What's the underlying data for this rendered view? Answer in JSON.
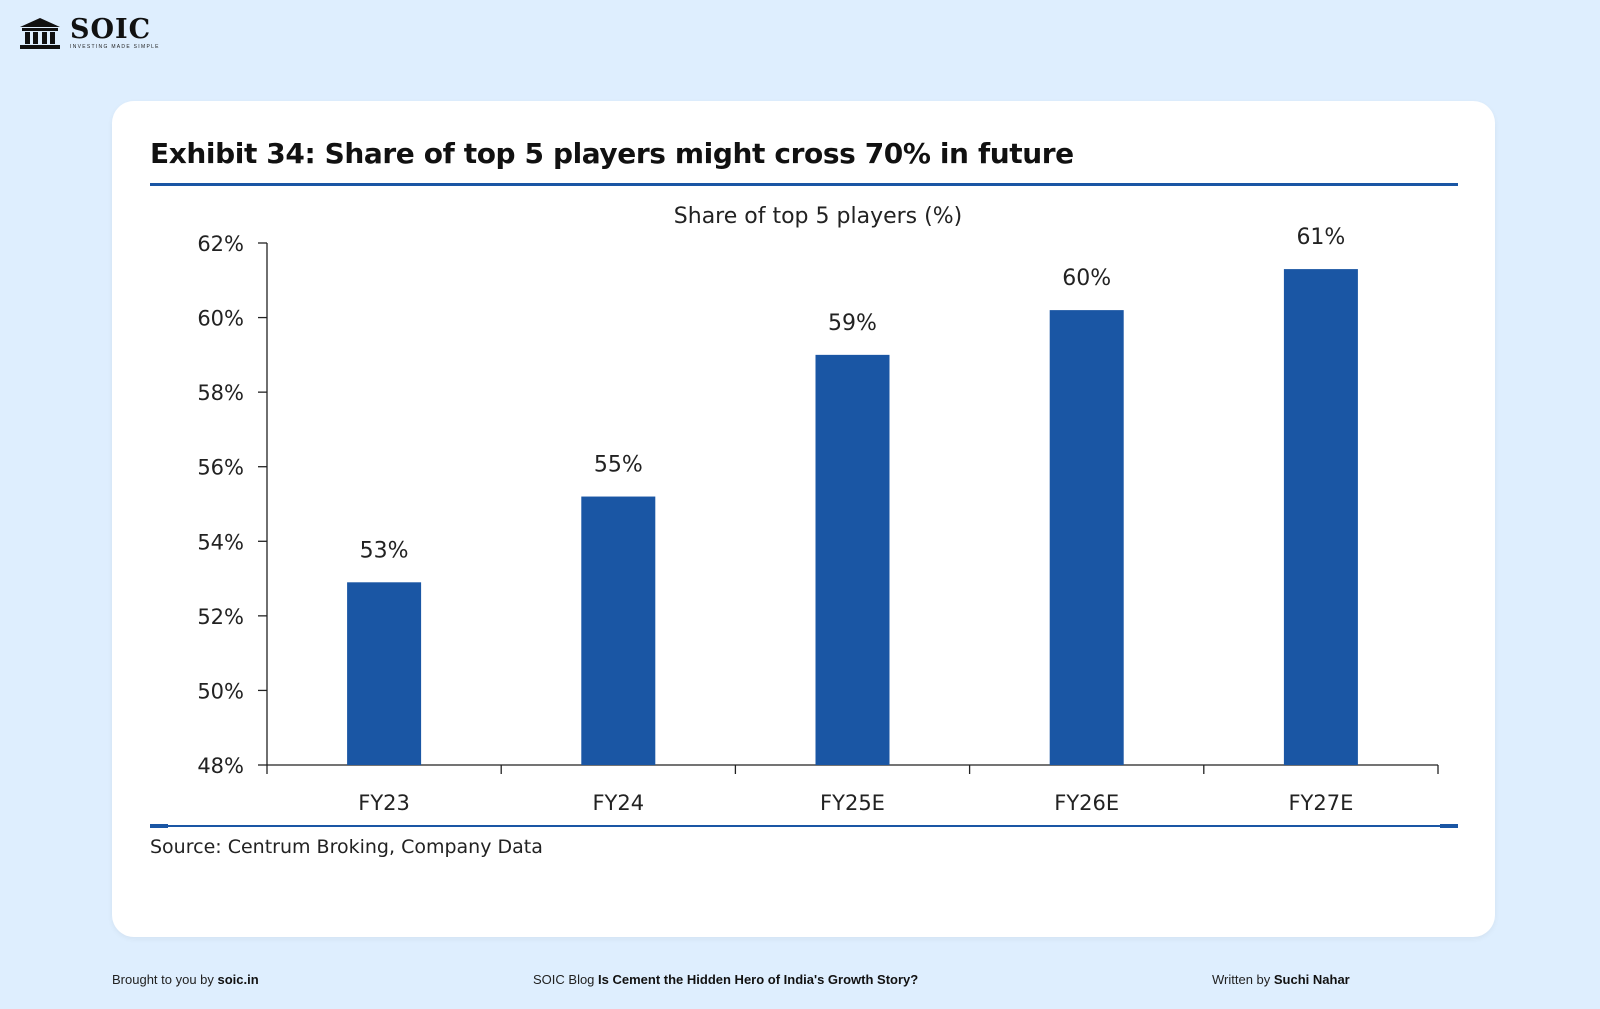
{
  "brand": {
    "name": "SOIC",
    "tagline": "INVESTING MADE SIMPLE",
    "icon": "bank-building-icon"
  },
  "exhibit": {
    "title": "Exhibit 34: Share of top 5 players might cross 70% in future",
    "source": "Source: Centrum Broking, Company Data"
  },
  "colors": {
    "bar": "#1a56a4",
    "accent": "#1a56a4",
    "background": "#deeefe"
  },
  "chart_data": {
    "type": "bar",
    "title": "Share of top 5 players (%)",
    "xlabel": "",
    "ylabel": "",
    "categories": [
      "FY23",
      "FY24",
      "FY25E",
      "FY26E",
      "FY27E"
    ],
    "values": [
      52.9,
      55.2,
      59.0,
      60.2,
      61.3
    ],
    "data_labels": [
      "53%",
      "55%",
      "59%",
      "60%",
      "61%"
    ],
    "ylim": [
      48,
      62
    ],
    "yticks": [
      48,
      50,
      52,
      54,
      56,
      58,
      60,
      62
    ],
    "ytick_labels": [
      "48%",
      "50%",
      "52%",
      "54%",
      "56%",
      "58%",
      "60%",
      "62%"
    ],
    "grid": false,
    "legend": "none"
  },
  "footer": {
    "left_prefix": "Brought to you by ",
    "left_link": "soic.in",
    "mid_prefix": "SOIC Blog ",
    "mid_title": "Is Cement the Hidden Hero of India's Growth Story?",
    "right_prefix": "Written by ",
    "right_author": "Suchi Nahar"
  }
}
